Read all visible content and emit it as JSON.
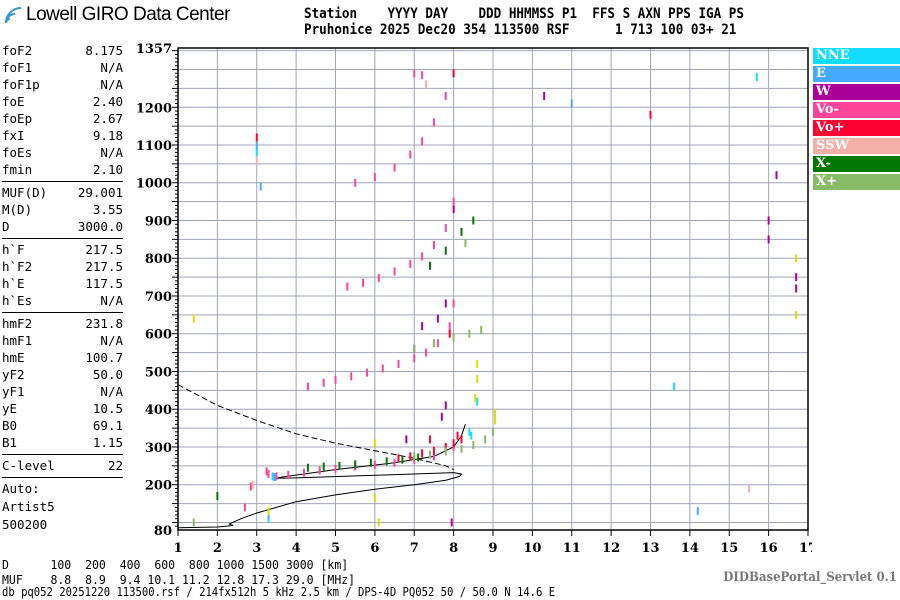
{
  "header": {
    "logo_text": "Lowell GIRO Data Center",
    "line1": "Station    YYYY DAY    DDD HHMMSS P1  FFS S AXN PPS IGA PS",
    "line2": "Pruhonice 2025 Dec20 354 113500 RSF      1 713 100 03+ 21"
  },
  "params": [
    [
      {
        "k": "foF2",
        "v": "8.175"
      },
      {
        "k": "foF1",
        "v": "N/A"
      },
      {
        "k": "foF1p",
        "v": "N/A"
      },
      {
        "k": "foE",
        "v": "2.40"
      },
      {
        "k": "foEp",
        "v": "2.67"
      },
      {
        "k": "fxI",
        "v": "9.18"
      },
      {
        "k": "foEs",
        "v": "N/A"
      },
      {
        "k": "fmin",
        "v": "2.10"
      }
    ],
    [
      {
        "k": "MUF(D)",
        "v": "29.001"
      },
      {
        "k": "M(D)",
        "v": "3.55"
      },
      {
        "k": "D",
        "v": "3000.0"
      }
    ],
    [
      {
        "k": "h`F",
        "v": "217.5"
      },
      {
        "k": "h`F2",
        "v": "217.5"
      },
      {
        "k": "h`E",
        "v": "117.5"
      },
      {
        "k": "h`Es",
        "v": "N/A"
      }
    ],
    [
      {
        "k": "hmF2",
        "v": "231.8"
      },
      {
        "k": "hmF1",
        "v": "N/A"
      },
      {
        "k": "hmE",
        "v": "100.7"
      },
      {
        "k": "yF2",
        "v": "50.0"
      },
      {
        "k": "yF1",
        "v": "N/A"
      },
      {
        "k": "yE",
        "v": "10.5"
      },
      {
        "k": "B0",
        "v": "69.1"
      },
      {
        "k": "B1",
        "v": "1.15"
      }
    ],
    [
      {
        "k": "C-level",
        "v": "22"
      }
    ]
  ],
  "auto": {
    "l1": "Auto:",
    "l2": "Artist5",
    "l3": "500200"
  },
  "footer": {
    "d_row": "D      100  200  400  600  800 1000 1500 3000 [km]",
    "muf_row": "MUF    8.8  8.9  9.4 10.1 11.2 12.8 17.3 29.0 [MHz]",
    "file_line": "db pq052 20251220 113500.rsf / 214fx512h 5 kHz 2.5 km / DPS-4D PQ052 50 / 50.0 N 14.6 E",
    "servlet": "DIDBasePortal_Servlet 0.1"
  },
  "chart_data": {
    "type": "scatter",
    "xlim": [
      1,
      17
    ],
    "ylim": [
      80,
      1357
    ],
    "x_ticks": [
      1,
      2,
      3,
      4,
      5,
      6,
      7,
      8,
      9,
      10,
      11,
      12,
      13,
      14,
      15,
      16,
      17
    ],
    "y_ticks": [
      80,
      200,
      300,
      400,
      500,
      600,
      700,
      800,
      900,
      1000,
      1100,
      1200,
      1357
    ],
    "grid": true,
    "legend_position": "right",
    "series": [
      {
        "name": "NNE",
        "color": "#11ddff",
        "points": [
          [
            8.4,
            340
          ],
          [
            8.45,
            330
          ],
          [
            8.6,
            420
          ],
          [
            3.3,
            110
          ],
          [
            3.0,
            1080
          ],
          [
            15.7,
            1280
          ],
          [
            13.6,
            460
          ],
          [
            3.4,
            222
          ]
        ]
      },
      {
        "name": "E",
        "color": "#44aaff",
        "points": [
          [
            3.0,
            1100
          ],
          [
            3.1,
            990
          ],
          [
            3.3,
            120
          ],
          [
            11.0,
            1210
          ],
          [
            3.45,
            220
          ],
          [
            14.2,
            130
          ]
        ]
      },
      {
        "name": "W",
        "color": "#aa0099",
        "points": [
          [
            7.8,
            410
          ],
          [
            7.7,
            380
          ],
          [
            7.2,
            620
          ],
          [
            7.6,
            640
          ],
          [
            7.8,
            680
          ],
          [
            8.0,
            930
          ],
          [
            16.0,
            850
          ],
          [
            16.0,
            900
          ],
          [
            16.7,
            750
          ],
          [
            16.7,
            720
          ],
          [
            7.95,
            100
          ],
          [
            10.3,
            1230
          ],
          [
            16.2,
            1020
          ],
          [
            7.0,
            560
          ],
          [
            6.8,
            320
          ]
        ]
      },
      {
        "name": "Vo-",
        "color": "#ff4499",
        "points": [
          [
            3.3,
            228
          ],
          [
            3.5,
            222
          ],
          [
            3.8,
            226
          ],
          [
            4.2,
            232
          ],
          [
            4.6,
            238
          ],
          [
            5.0,
            242
          ],
          [
            5.5,
            248
          ],
          [
            6.0,
            253
          ],
          [
            6.5,
            258
          ],
          [
            7.0,
            265
          ],
          [
            7.5,
            275
          ],
          [
            8.0,
            300
          ],
          [
            4.3,
            460
          ],
          [
            4.7,
            470
          ],
          [
            5.0,
            478
          ],
          [
            5.4,
            487
          ],
          [
            5.8,
            497
          ],
          [
            6.2,
            508
          ],
          [
            6.6,
            520
          ],
          [
            7.0,
            535
          ],
          [
            7.3,
            550
          ],
          [
            7.6,
            575
          ],
          [
            7.9,
            620
          ],
          [
            8.0,
            680
          ],
          [
            5.3,
            725
          ],
          [
            5.7,
            735
          ],
          [
            6.1,
            748
          ],
          [
            6.5,
            765
          ],
          [
            6.9,
            785
          ],
          [
            7.2,
            805
          ],
          [
            7.5,
            835
          ],
          [
            7.8,
            880
          ],
          [
            8.0,
            950
          ],
          [
            5.5,
            1000
          ],
          [
            6.0,
            1015
          ],
          [
            6.5,
            1040
          ],
          [
            6.9,
            1075
          ],
          [
            7.2,
            1110
          ],
          [
            7.5,
            1160
          ],
          [
            7.8,
            1230
          ],
          [
            7.0,
            1290
          ],
          [
            7.2,
            1285
          ],
          [
            2.85,
            195
          ],
          [
            3.25,
            235
          ],
          [
            2.7,
            140
          ]
        ]
      },
      {
        "name": "Vo+",
        "color": "#ff0033",
        "points": [
          [
            6.6,
            270
          ],
          [
            6.9,
            275
          ],
          [
            7.2,
            283
          ],
          [
            7.5,
            290
          ],
          [
            7.8,
            300
          ],
          [
            8.0,
            310
          ],
          [
            8.2,
            320
          ],
          [
            8.1,
            330
          ],
          [
            7.4,
            320
          ],
          [
            7.9,
            600
          ],
          [
            8.0,
            1290
          ],
          [
            13.0,
            1180
          ],
          [
            3.0,
            1120
          ]
        ]
      },
      {
        "name": "SSW",
        "color": "#f4b0a8",
        "points": [
          [
            3.0,
            1060
          ],
          [
            2.9,
            200
          ],
          [
            15.5,
            190
          ],
          [
            7.3,
            1260
          ]
        ]
      },
      {
        "name": "X-",
        "color": "#007700",
        "points": [
          [
            4.3,
            245
          ],
          [
            4.7,
            248
          ],
          [
            5.1,
            250
          ],
          [
            5.5,
            254
          ],
          [
            5.9,
            258
          ],
          [
            6.3,
            262
          ],
          [
            6.7,
            266
          ],
          [
            7.1,
            272
          ],
          [
            2.0,
            170
          ],
          [
            7.4,
            780
          ],
          [
            7.8,
            820
          ],
          [
            8.2,
            870
          ],
          [
            8.5,
            900
          ]
        ]
      },
      {
        "name": "X+",
        "color": "#88bb66",
        "points": [
          [
            7.0,
            275
          ],
          [
            7.4,
            280
          ],
          [
            7.8,
            288
          ],
          [
            8.2,
            295
          ],
          [
            8.5,
            305
          ],
          [
            8.8,
            320
          ],
          [
            9.0,
            340
          ],
          [
            1.4,
            100
          ],
          [
            7.0,
            560
          ],
          [
            7.5,
            575
          ],
          [
            8.0,
            590
          ],
          [
            8.4,
            600
          ],
          [
            8.7,
            610
          ],
          [
            8.3,
            840
          ]
        ]
      },
      {
        "name": "",
        "color": "#dddd00",
        "points": [
          [
            8.6,
            480
          ],
          [
            8.6,
            520
          ],
          [
            9.05,
            370
          ],
          [
            9.05,
            390
          ],
          [
            6.0,
            310
          ],
          [
            6.0,
            165
          ],
          [
            16.7,
            800
          ],
          [
            16.7,
            650
          ],
          [
            3.3,
            130
          ],
          [
            8.55,
            430
          ],
          [
            6.1,
            100
          ],
          [
            1.4,
            640
          ]
        ]
      }
    ],
    "profile_solid": [
      [
        1.0,
        86
      ],
      [
        2.0,
        88
      ],
      [
        2.4,
        92
      ],
      [
        2.3,
        96
      ],
      [
        2.6,
        110
      ],
      [
        3.0,
        125
      ],
      [
        3.5,
        140
      ],
      [
        4.0,
        155
      ],
      [
        5.0,
        173
      ],
      [
        6.0,
        188
      ],
      [
        7.0,
        200
      ],
      [
        7.8,
        212
      ],
      [
        8.15,
        222
      ],
      [
        8.2,
        228
      ],
      [
        8.0,
        232
      ],
      [
        6.0,
        225
      ],
      [
        4.0,
        218
      ],
      [
        3.5,
        217
      ],
      [
        3.6,
        220
      ],
      [
        5.0,
        240
      ],
      [
        6.5,
        258
      ],
      [
        7.5,
        275
      ],
      [
        8.0,
        300
      ],
      [
        8.2,
        330
      ],
      [
        8.3,
        360
      ]
    ],
    "profile_dashed": [
      [
        1.0,
        465
      ],
      [
        2.0,
        410
      ],
      [
        3.0,
        370
      ],
      [
        4.0,
        335
      ],
      [
        5.0,
        310
      ],
      [
        6.0,
        290
      ],
      [
        7.0,
        270
      ],
      [
        7.8,
        250
      ],
      [
        8.0,
        240
      ]
    ]
  }
}
